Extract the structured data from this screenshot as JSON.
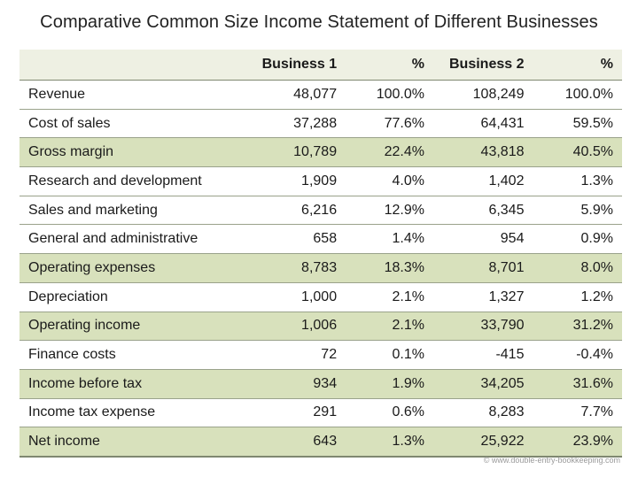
{
  "title": "Comparative Common Size Income Statement of Different Businesses",
  "header": {
    "label": "",
    "business1": "Business 1",
    "pct1": "%",
    "business2": "Business 2",
    "pct2": "%"
  },
  "rows": [
    {
      "label": "Revenue",
      "b1": "48,077",
      "p1": "100.0%",
      "b2": "108,249",
      "p2": "100.0%",
      "highlight": false
    },
    {
      "label": "Cost of sales",
      "b1": "37,288",
      "p1": "77.6%",
      "b2": "64,431",
      "p2": "59.5%",
      "highlight": false
    },
    {
      "label": "Gross margin",
      "b1": "10,789",
      "p1": "22.4%",
      "b2": "43,818",
      "p2": "40.5%",
      "highlight": true
    },
    {
      "label": "Research and development",
      "b1": "1,909",
      "p1": "4.0%",
      "b2": "1,402",
      "p2": "1.3%",
      "highlight": false
    },
    {
      "label": "Sales and marketing",
      "b1": "6,216",
      "p1": "12.9%",
      "b2": "6,345",
      "p2": "5.9%",
      "highlight": false
    },
    {
      "label": "General and administrative",
      "b1": "658",
      "p1": "1.4%",
      "b2": "954",
      "p2": "0.9%",
      "highlight": false
    },
    {
      "label": "Operating expenses",
      "b1": "8,783",
      "p1": "18.3%",
      "b2": "8,701",
      "p2": "8.0%",
      "highlight": true
    },
    {
      "label": "Depreciation",
      "b1": "1,000",
      "p1": "2.1%",
      "b2": "1,327",
      "p2": "1.2%",
      "highlight": false
    },
    {
      "label": "Operating income",
      "b1": "1,006",
      "p1": "2.1%",
      "b2": "33,790",
      "p2": "31.2%",
      "highlight": true
    },
    {
      "label": "Finance costs",
      "b1": "72",
      "p1": "0.1%",
      "b2": "-415",
      "p2": "-0.4%",
      "highlight": false
    },
    {
      "label": "Income before tax",
      "b1": "934",
      "p1": "1.9%",
      "b2": "34,205",
      "p2": "31.6%",
      "highlight": true
    },
    {
      "label": "Income tax expense",
      "b1": "291",
      "p1": "0.6%",
      "b2": "8,283",
      "p2": "7.7%",
      "highlight": false
    },
    {
      "label": "Net income",
      "b1": "643",
      "p1": "1.3%",
      "b2": "25,922",
      "p2": "23.9%",
      "highlight": true
    }
  ],
  "watermark": "© www.double-entry-bookkeeping.com",
  "colors": {
    "header_bg": "#eef0e3",
    "highlight_bg": "#d8e1bc",
    "rule": "#9aa28b"
  }
}
